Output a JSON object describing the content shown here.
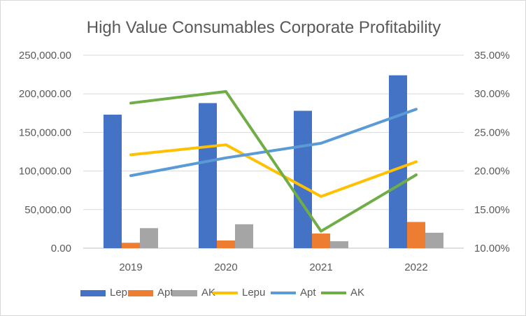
{
  "chart_data": {
    "type": "bar",
    "title": "High Value Consumables Corporate Profitability",
    "categories": [
      "2019",
      "2020",
      "2021",
      "2022"
    ],
    "left_axis": {
      "ylim": [
        0,
        250000
      ],
      "ticks": [
        0,
        50000,
        100000,
        150000,
        200000,
        250000
      ],
      "tick_labels": [
        "0.00",
        "50,000.00",
        "100,000.00",
        "150,000.00",
        "200,000.00",
        "250,000.00"
      ]
    },
    "right_axis": {
      "ylim": [
        0.1,
        0.35
      ],
      "ticks": [
        0.1,
        0.15,
        0.2,
        0.25,
        0.3,
        0.35
      ],
      "tick_labels": [
        "10.00%",
        "15.00%",
        "20.00%",
        "25.00%",
        "30.00%",
        "35.00%"
      ]
    },
    "bar_series": [
      {
        "name": "Lepu",
        "color": "#4472C4",
        "values": [
          173000,
          188000,
          178000,
          224000
        ]
      },
      {
        "name": "Apt",
        "color": "#ED7D31",
        "values": [
          7000,
          10000,
          19000,
          34000
        ]
      },
      {
        "name": "AK",
        "color": "#A5A5A5",
        "values": [
          26000,
          31000,
          9000,
          20000
        ]
      }
    ],
    "line_series": [
      {
        "name": "Lepu",
        "color": "#FFC000",
        "values": [
          0.221,
          0.234,
          0.167,
          0.212
        ]
      },
      {
        "name": "Apt",
        "color": "#5B9BD5",
        "values": [
          0.194,
          0.217,
          0.236,
          0.28
        ]
      },
      {
        "name": "AK",
        "color": "#70AD47",
        "values": [
          0.288,
          0.303,
          0.122,
          0.195
        ]
      }
    ],
    "legend": [
      "Lepu",
      "Apt",
      "AK",
      "Lepu",
      "Apt",
      "AK"
    ],
    "legend_position": "bottom",
    "grid": true
  }
}
